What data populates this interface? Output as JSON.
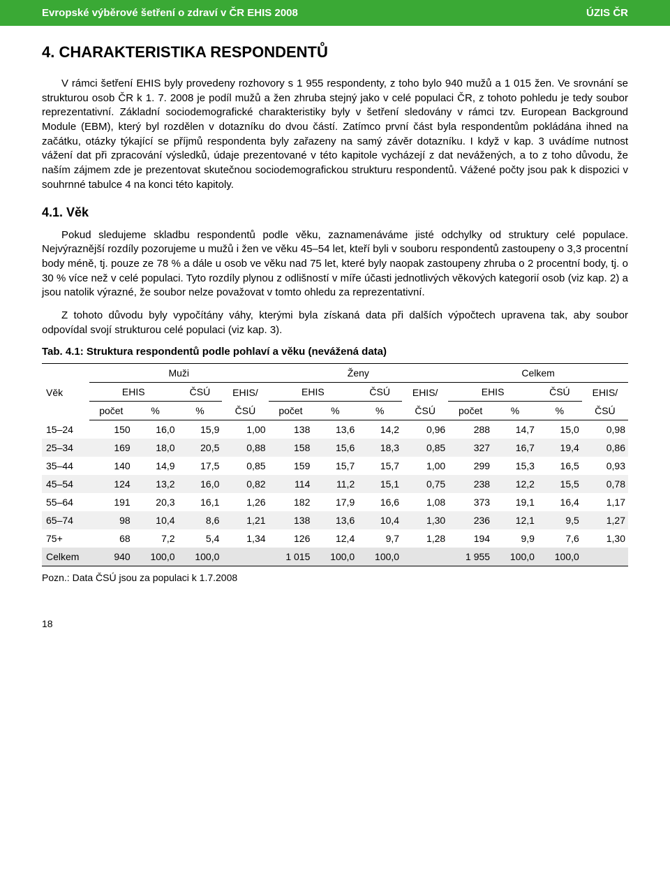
{
  "header": {
    "left": "Evropské výběrové šetření o zdraví v ČR EHIS 2008",
    "right": "ÚZIS ČR"
  },
  "h1": "4. CHARAKTERISTIKA RESPONDENTŮ",
  "p1": "V rámci šetření EHIS byly provedeny rozhovory s 1 955 respondenty, z toho bylo 940 mužů a 1 015 žen. Ve srovnání se strukturou osob ČR k 1. 7. 2008 je podíl mužů a žen zhruba stejný jako v celé populaci ČR, z tohoto pohledu je tedy soubor reprezentativní. Základní sociodemografické charakteristiky byly v šetření sledovány v rámci tzv. European Background Module (EBM), který byl rozdělen v dotazníku do dvou částí. Zatímco první část byla respondentům pokládána ihned na začátku, otázky týkající se příjmů respondenta byly zařazeny na samý závěr dotazníku. I když v kap. 3 uvádíme nutnost vážení dat při zpracování výsledků, údaje prezentované v této kapitole vycházejí z dat nevážených, a to z toho důvodu, že naším zájmem zde je prezentovat skutečnou sociodemografickou strukturu respondentů. Vážené počty jsou pak k dispozici v souhrnné tabulce 4 na konci této kapitoly.",
  "h2": "4.1. Věk",
  "p2": "Pokud sledujeme skladbu respondentů podle věku, zaznamenáváme jisté odchylky od struktury celé populace. Nejvýraznější rozdíly pozorujeme u mužů i žen ve věku 45–54 let, kteří byli v souboru respondentů zastoupeny o 3,3 procentní body méně, tj. pouze ze 78 % a dále u osob ve věku nad 75 let, které byly naopak zastoupeny zhruba o 2 procentní body, tj. o 30 % více než v celé populaci. Tyto rozdíly plynou z odlišností v míře účasti jednotlivých věkových kategorií osob (viz kap. 2) a jsou natolik výrazné, že soubor nelze považovat v tomto ohledu za reprezentativní.",
  "p3": "Z tohoto důvodu byly vypočítány váhy, kterými byla získaná data při dalších výpočtech upravena tak, aby soubor odpovídal svojí strukturou celé populaci (viz kap. 3).",
  "table": {
    "caption": "Tab. 4.1:   Struktura respondentů podle pohlaví a věku (nevážená data)",
    "corner": "Věk",
    "groups": [
      "Muži",
      "Ženy",
      "Celkem"
    ],
    "sub1": [
      "EHIS",
      "ČSÚ",
      "EHIS/",
      "EHIS",
      "ČSÚ",
      "EHIS/",
      "EHIS",
      "ČSÚ",
      "EHIS/"
    ],
    "sub2": [
      "počet",
      "%",
      "%",
      "ČSÚ",
      "počet",
      "%",
      "%",
      "ČSÚ",
      "počet",
      "%",
      "%",
      "ČSÚ"
    ],
    "rows": [
      {
        "lab": "15–24",
        "c": [
          "150",
          "16,0",
          "15,9",
          "1,00",
          "138",
          "13,6",
          "14,2",
          "0,96",
          "288",
          "14,7",
          "15,0",
          "0,98"
        ]
      },
      {
        "lab": "25–34",
        "c": [
          "169",
          "18,0",
          "20,5",
          "0,88",
          "158",
          "15,6",
          "18,3",
          "0,85",
          "327",
          "16,7",
          "19,4",
          "0,86"
        ]
      },
      {
        "lab": "35–44",
        "c": [
          "140",
          "14,9",
          "17,5",
          "0,85",
          "159",
          "15,7",
          "15,7",
          "1,00",
          "299",
          "15,3",
          "16,5",
          "0,93"
        ]
      },
      {
        "lab": "45–54",
        "c": [
          "124",
          "13,2",
          "16,0",
          "0,82",
          "114",
          "11,2",
          "15,1",
          "0,75",
          "238",
          "12,2",
          "15,5",
          "0,78"
        ]
      },
      {
        "lab": "55–64",
        "c": [
          "191",
          "20,3",
          "16,1",
          "1,26",
          "182",
          "17,9",
          "16,6",
          "1,08",
          "373",
          "19,1",
          "16,4",
          "1,17"
        ]
      },
      {
        "lab": "65–74",
        "c": [
          "98",
          "10,4",
          "8,6",
          "1,21",
          "138",
          "13,6",
          "10,4",
          "1,30",
          "236",
          "12,1",
          "9,5",
          "1,27"
        ]
      },
      {
        "lab": "75+",
        "c": [
          "68",
          "7,2",
          "5,4",
          "1,34",
          "126",
          "12,4",
          "9,7",
          "1,28",
          "194",
          "9,9",
          "7,6",
          "1,30"
        ]
      }
    ],
    "total": {
      "lab": "Celkem",
      "c": [
        "940",
        "100,0",
        "100,0",
        "",
        "1 015",
        "100,0",
        "100,0",
        "",
        "1 955",
        "100,0",
        "100,0",
        ""
      ]
    },
    "footnote": "Pozn.: Data ČSÚ jsou za populaci k 1.7.2008"
  },
  "page_number": "18",
  "colors": {
    "header_bg": "#3aa935",
    "shade_bg": "#f0f0f0",
    "total_bg": "#e4e4e4"
  }
}
